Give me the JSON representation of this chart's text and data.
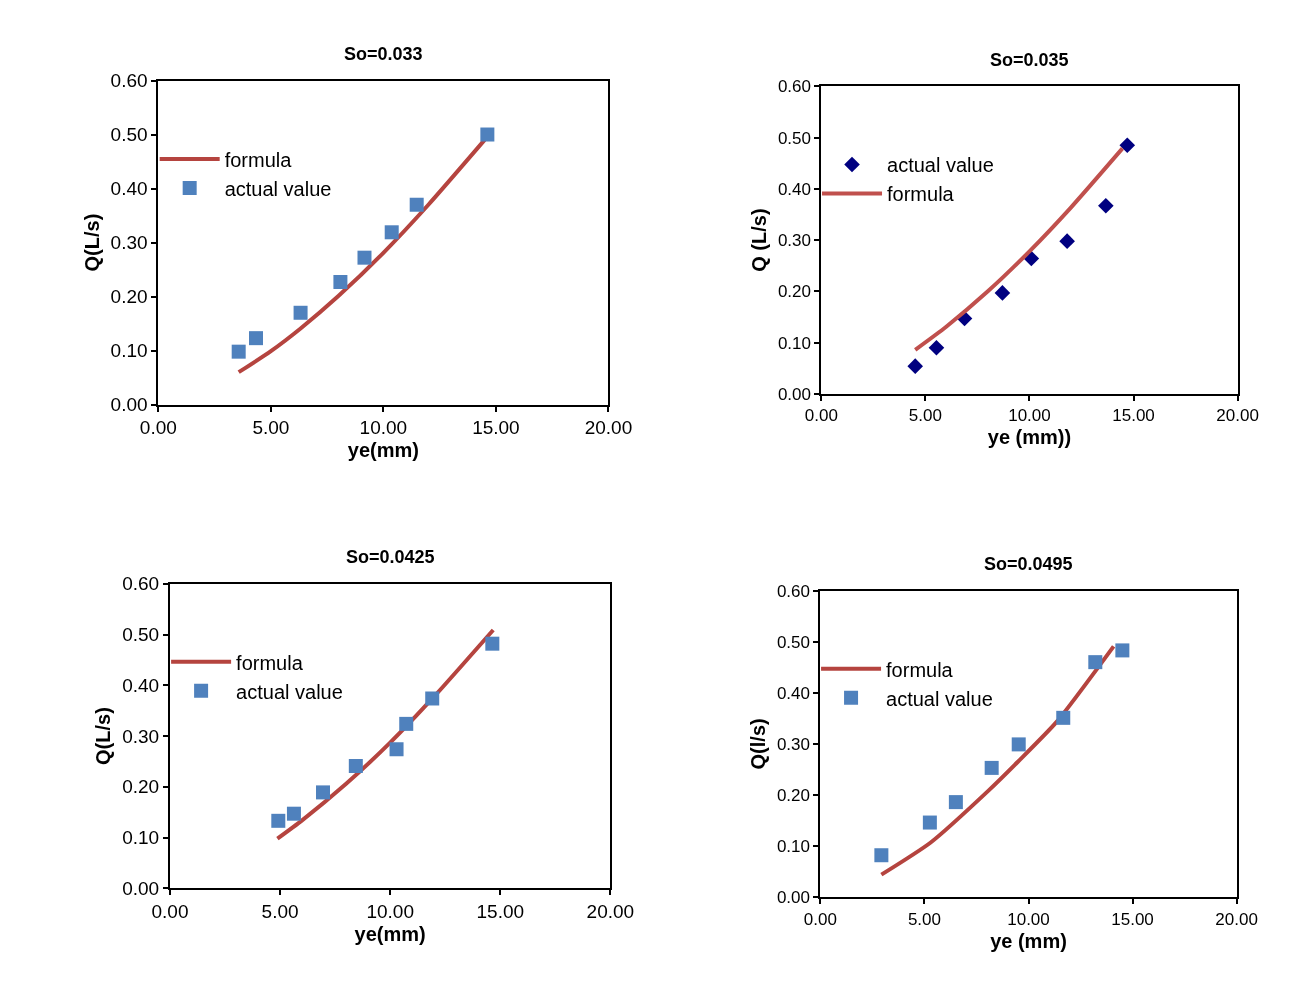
{
  "chart_data": [
    {
      "type": "scatter",
      "title": "So=0.033",
      "xlabel": "ye(mm)",
      "ylabel": "Q(L/s)",
      "xlim": [
        0,
        20
      ],
      "ylim": [
        0,
        0.6
      ],
      "xticks": [
        {
          "value": 0,
          "label": "0.00"
        },
        {
          "value": 5,
          "label": "5.00"
        },
        {
          "value": 10,
          "label": "10.00"
        },
        {
          "value": 15,
          "label": "15.00"
        },
        {
          "value": 20,
          "label": "20.00"
        }
      ],
      "yticks": [
        {
          "value": 0,
          "label": "0.00"
        },
        {
          "value": 0.1,
          "label": "0.10"
        },
        {
          "value": 0.2,
          "label": "0.20"
        },
        {
          "value": 0.3,
          "label": "0.30"
        },
        {
          "value": 0.4,
          "label": "0.40"
        },
        {
          "value": 0.5,
          "label": "0.50"
        },
        {
          "value": 0.6,
          "label": "0.60"
        }
      ],
      "grid": false,
      "legend": "top left",
      "series": [
        {
          "name": "formula",
          "type": "line",
          "color": "#b5443f",
          "x": [
            3.57,
            5,
            6.32,
            8,
            10,
            12,
            14.5
          ],
          "values": [
            0.06,
            0.099,
            0.141,
            0.201,
            0.281,
            0.37,
            0.49
          ],
          "marker": "none"
        },
        {
          "name": "actual value",
          "color": "#4f81bd",
          "x": [
            3.57,
            4.34,
            6.32,
            8.09,
            9.16,
            10.37,
            11.48,
            14.62
          ],
          "values": [
            0.098,
            0.123,
            0.17,
            0.227,
            0.272,
            0.319,
            0.37,
            0.5
          ],
          "marker": "square"
        }
      ]
    },
    {
      "type": "scatter",
      "title": "So=0.035",
      "xlabel": "ye (mm))",
      "ylabel": "Q (L/s)",
      "xlim": [
        0,
        20
      ],
      "ylim": [
        0,
        0.6
      ],
      "xticks": [
        {
          "value": 0,
          "label": "0.00"
        },
        {
          "value": 5,
          "label": "5.00"
        },
        {
          "value": 10,
          "label": "10.00"
        },
        {
          "value": 15,
          "label": "15.00"
        },
        {
          "value": 20,
          "label": "20.00"
        }
      ],
      "yticks": [
        {
          "value": 0,
          "label": "0.00"
        },
        {
          "value": 0.1,
          "label": "0.10"
        },
        {
          "value": 0.2,
          "label": "0.20"
        },
        {
          "value": 0.3,
          "label": "0.30"
        },
        {
          "value": 0.4,
          "label": "0.40"
        },
        {
          "value": 0.5,
          "label": "0.50"
        },
        {
          "value": 0.6,
          "label": "0.60"
        }
      ],
      "grid": false,
      "legend": "top left",
      "series": [
        {
          "name": "actual value",
          "color": "#000080",
          "x": [
            4.51,
            5.53,
            6.88,
            8.7,
            10.09,
            11.81,
            13.67,
            14.7
          ],
          "values": [
            0.054,
            0.09,
            0.147,
            0.197,
            0.264,
            0.298,
            0.367,
            0.485
          ],
          "marker": "diamond"
        },
        {
          "name": "formula",
          "type": "line",
          "color": "#c0504d",
          "x": [
            4.51,
            6,
            8,
            10,
            12,
            14.47
          ],
          "values": [
            0.086,
            0.131,
            0.2,
            0.278,
            0.364,
            0.479
          ],
          "marker": "none"
        }
      ]
    },
    {
      "type": "scatter",
      "title": "So=0.0425",
      "xlabel": "ye(mm)",
      "ylabel": "Q(L/s)",
      "xlim": [
        0,
        20
      ],
      "ylim": [
        0,
        0.6
      ],
      "xticks": [
        {
          "value": 0,
          "label": "0.00"
        },
        {
          "value": 5,
          "label": "5.00"
        },
        {
          "value": 10,
          "label": "10.00"
        },
        {
          "value": 15,
          "label": "15.00"
        },
        {
          "value": 20,
          "label": "20.00"
        }
      ],
      "yticks": [
        {
          "value": 0,
          "label": "0.00"
        },
        {
          "value": 0.1,
          "label": "0.10"
        },
        {
          "value": 0.2,
          "label": "0.20"
        },
        {
          "value": 0.3,
          "label": "0.30"
        },
        {
          "value": 0.4,
          "label": "0.40"
        },
        {
          "value": 0.5,
          "label": "0.50"
        },
        {
          "value": 0.6,
          "label": "0.60"
        }
      ],
      "grid": false,
      "legend": "top left",
      "series": [
        {
          "name": "formula",
          "type": "line",
          "color": "#b5443f",
          "x": [
            4.88,
            6,
            8,
            10,
            12,
            14.68
          ],
          "values": [
            0.098,
            0.134,
            0.206,
            0.287,
            0.378,
            0.509
          ],
          "marker": "none"
        },
        {
          "name": "actual value",
          "color": "#4f81bd",
          "x": [
            4.92,
            5.63,
            6.95,
            8.44,
            10.29,
            10.73,
            11.91,
            14.64
          ],
          "values": [
            0.133,
            0.147,
            0.189,
            0.241,
            0.274,
            0.324,
            0.374,
            0.482
          ],
          "marker": "square"
        }
      ]
    },
    {
      "type": "scatter",
      "title": "So=0.0495",
      "xlabel": "ye (mm)",
      "ylabel": "Q(l/s)",
      "xlim": [
        0,
        20
      ],
      "ylim": [
        0,
        0.6
      ],
      "xticks": [
        {
          "value": 0,
          "label": "0.00"
        },
        {
          "value": 5,
          "label": "5.00"
        },
        {
          "value": 10,
          "label": "10.00"
        },
        {
          "value": 15,
          "label": "15.00"
        },
        {
          "value": 20,
          "label": "20.00"
        }
      ],
      "yticks": [
        {
          "value": 0,
          "label": "0.00"
        },
        {
          "value": 0.1,
          "label": "0.10"
        },
        {
          "value": 0.2,
          "label": "0.20"
        },
        {
          "value": 0.3,
          "label": "0.30"
        },
        {
          "value": 0.4,
          "label": "0.40"
        },
        {
          "value": 0.5,
          "label": "0.50"
        },
        {
          "value": 0.6,
          "label": "0.60"
        }
      ],
      "grid": false,
      "legend": "top left",
      "series": [
        {
          "name": "formula",
          "type": "line",
          "color": "#b5443f",
          "x": [
            2.93,
            5.3,
            8.09,
            9.49,
            11.35,
            14.09
          ],
          "values": [
            0.044,
            0.107,
            0.209,
            0.265,
            0.343,
            0.491
          ],
          "marker": "none"
        },
        {
          "name": "actual value",
          "color": "#4f81bd",
          "x": [
            2.93,
            5.26,
            6.51,
            8.23,
            9.53,
            11.67,
            13.21,
            14.51
          ],
          "values": [
            0.082,
            0.146,
            0.186,
            0.253,
            0.299,
            0.351,
            0.46,
            0.483
          ],
          "marker": "square"
        }
      ]
    }
  ]
}
